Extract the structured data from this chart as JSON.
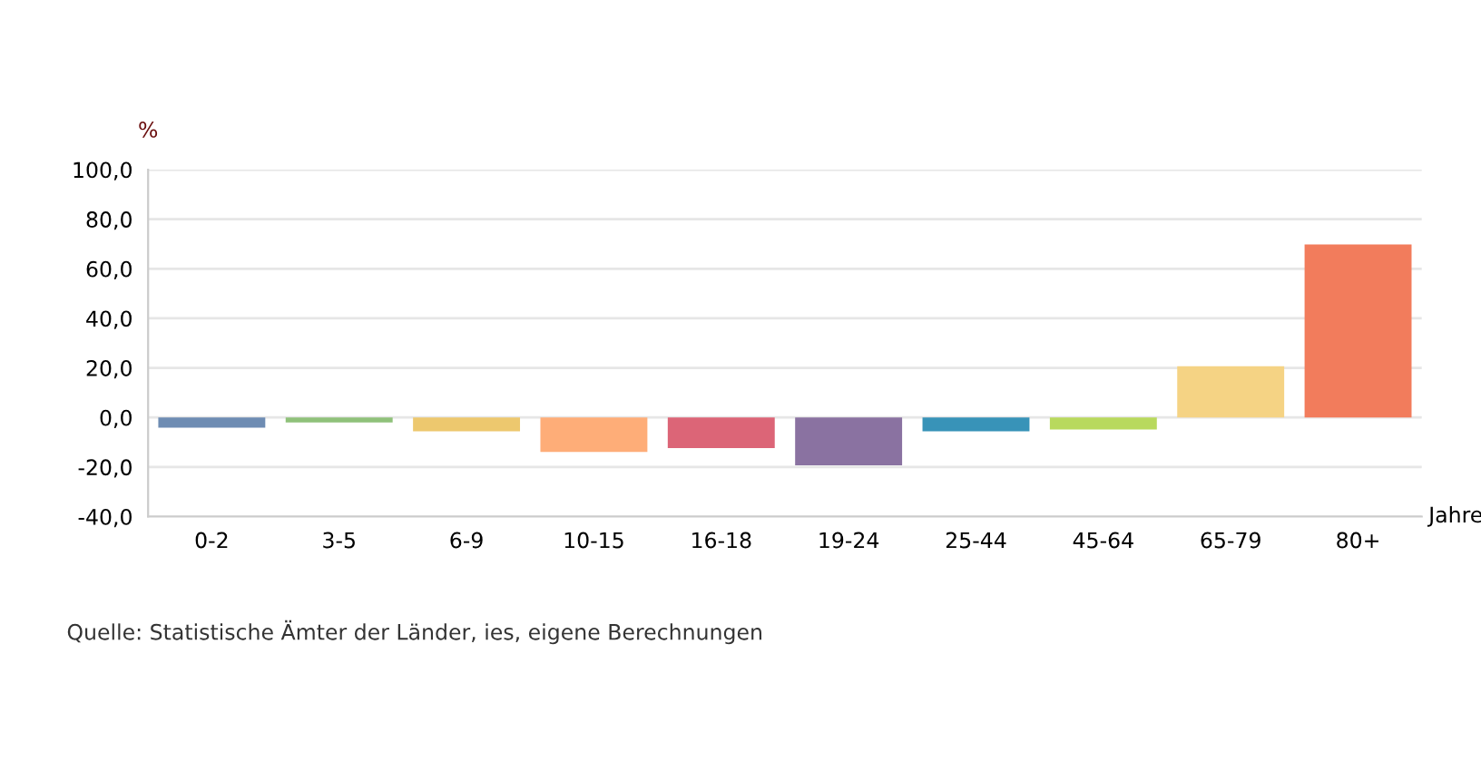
{
  "chart_data": {
    "type": "bar",
    "ylabel": "%",
    "xlabel": "Jahre",
    "categories": [
      "0-2",
      "3-5",
      "6-9",
      "10-15",
      "16-18",
      "19-24",
      "25-44",
      "45-64",
      "65-79",
      "80+"
    ],
    "values": [
      -4.1,
      -2.0,
      -5.6,
      -13.9,
      -12.4,
      -19.3,
      -5.6,
      -4.9,
      20.7,
      69.8
    ],
    "colors": [
      "#6e8cb3",
      "#8fc17a",
      "#edc86e",
      "#fead78",
      "#dc6577",
      "#8a72a1",
      "#3893b8",
      "#b8d95d",
      "#f5d384",
      "#f27c5c"
    ],
    "ylim": [
      -40,
      100
    ],
    "yticks": [
      {
        "value": -40,
        "label": "-40,0"
      },
      {
        "value": -20,
        "label": "-20,0"
      },
      {
        "value": 0,
        "label": "0,0"
      },
      {
        "value": 20,
        "label": "20,0"
      },
      {
        "value": 40,
        "label": "40,0"
      },
      {
        "value": 60,
        "label": "60,0"
      },
      {
        "value": 80,
        "label": "80,0"
      },
      {
        "value": 100,
        "label": "100,0"
      }
    ],
    "grid": "y",
    "annotations": [
      "Quelle: Statistische Ämter der Länder, ies, eigene Berechnungen"
    ]
  }
}
